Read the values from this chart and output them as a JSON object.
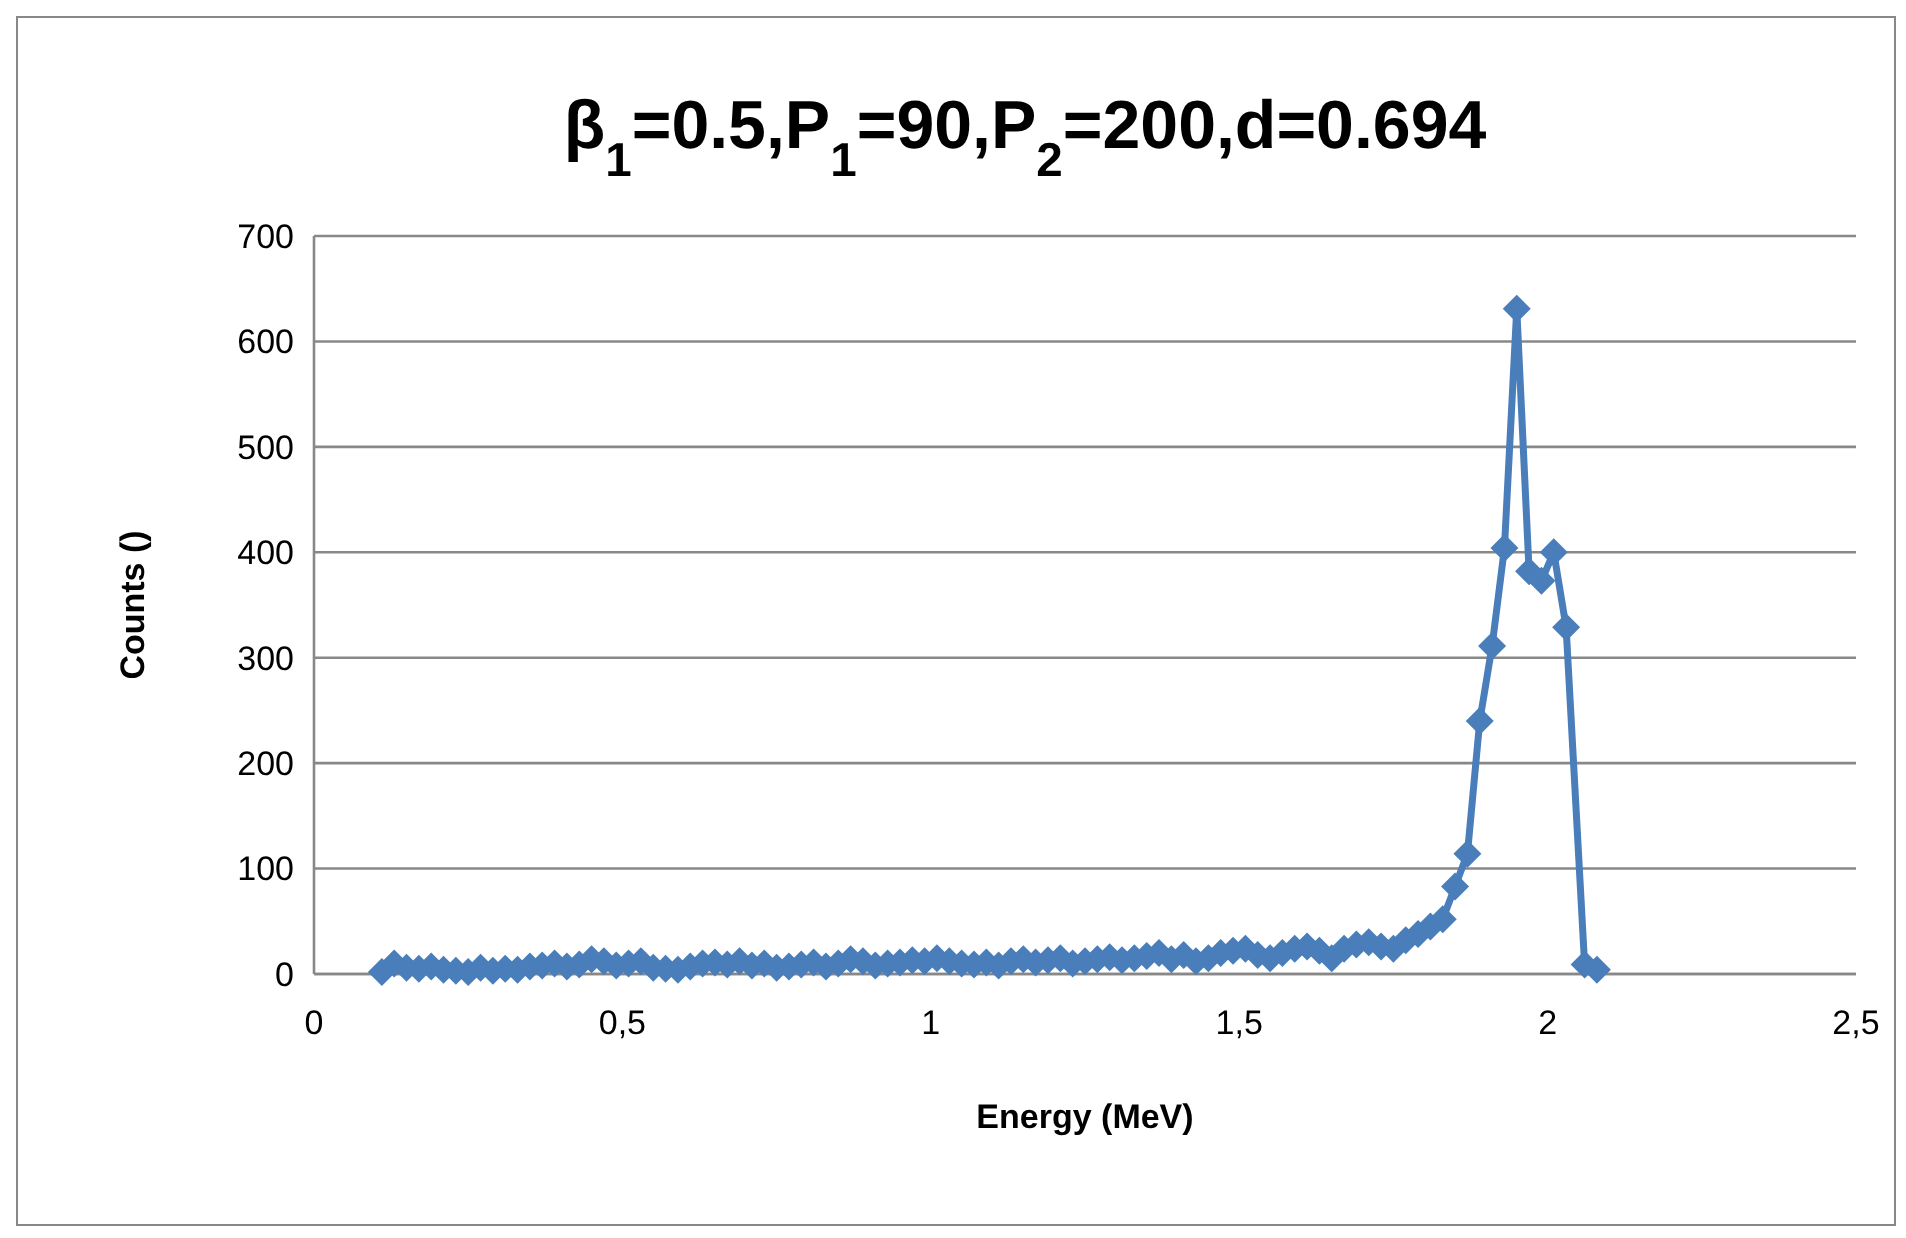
{
  "chart_data": {
    "type": "line",
    "title": "β$_{1}$=0.5,P$_{1}$=90,P$_{2}$=200,d=0.694",
    "xlabel": "Energy (MeV)",
    "ylabel": "Counts ()",
    "xlim": [
      0,
      2.5
    ],
    "xticks": [
      {
        "value": 0,
        "label": "0"
      },
      {
        "value": 0.5,
        "label": "0,5"
      },
      {
        "value": 1,
        "label": "1"
      },
      {
        "value": 1.5,
        "label": "1,5"
      },
      {
        "value": 2,
        "label": "2"
      },
      {
        "value": 2.5,
        "label": "2,5"
      }
    ],
    "ylim": [
      0,
      700
    ],
    "yticks": [
      0,
      100,
      200,
      300,
      400,
      500,
      600,
      700
    ],
    "grid": "y",
    "marker": "diamond",
    "line_style": "solid",
    "series": [
      {
        "color": "#4a7ebb",
        "x": [
          0.11,
          0.13,
          0.15,
          0.17,
          0.19,
          0.21,
          0.23,
          0.25,
          0.27,
          0.29,
          0.31,
          0.33,
          0.35,
          0.37,
          0.39,
          0.41,
          0.43,
          0.45,
          0.47,
          0.49,
          0.51,
          0.53,
          0.55,
          0.57,
          0.59,
          0.61,
          0.63,
          0.65,
          0.67,
          0.69,
          0.71,
          0.73,
          0.75,
          0.77,
          0.79,
          0.81,
          0.83,
          0.85,
          0.87,
          0.89,
          0.91,
          0.93,
          0.95,
          0.97,
          0.99,
          1.01,
          1.03,
          1.05,
          1.07,
          1.09,
          1.11,
          1.13,
          1.15,
          1.17,
          1.19,
          1.21,
          1.23,
          1.25,
          1.27,
          1.29,
          1.31,
          1.33,
          1.35,
          1.37,
          1.39,
          1.41,
          1.43,
          1.45,
          1.47,
          1.49,
          1.51,
          1.53,
          1.55,
          1.57,
          1.59,
          1.61,
          1.63,
          1.65,
          1.67,
          1.69,
          1.71,
          1.73,
          1.75,
          1.77,
          1.79,
          1.81,
          1.83,
          1.85,
          1.87,
          1.89,
          1.91,
          1.93,
          1.95,
          1.97,
          1.99,
          2.01,
          2.03,
          2.06,
          2.08
        ],
        "values": [
          2,
          10,
          6,
          5,
          7,
          4,
          3,
          2,
          6,
          3,
          5,
          4,
          7,
          8,
          10,
          7,
          9,
          14,
          12,
          8,
          10,
          12,
          6,
          5,
          4,
          7,
          10,
          11,
          9,
          12,
          8,
          10,
          6,
          7,
          9,
          11,
          7,
          10,
          14,
          12,
          8,
          10,
          11,
          13,
          12,
          15,
          12,
          10,
          9,
          11,
          8,
          12,
          14,
          11,
          13,
          15,
          10,
          12,
          14,
          16,
          13,
          15,
          17,
          20,
          14,
          18,
          12,
          15,
          20,
          22,
          24,
          18,
          15,
          20,
          24,
          26,
          22,
          15,
          24,
          28,
          30,
          26,
          24,
          32,
          38,
          45,
          52,
          83,
          114,
          240,
          311,
          404,
          631,
          382,
          373,
          400,
          329,
          9,
          4
        ]
      }
    ]
  }
}
